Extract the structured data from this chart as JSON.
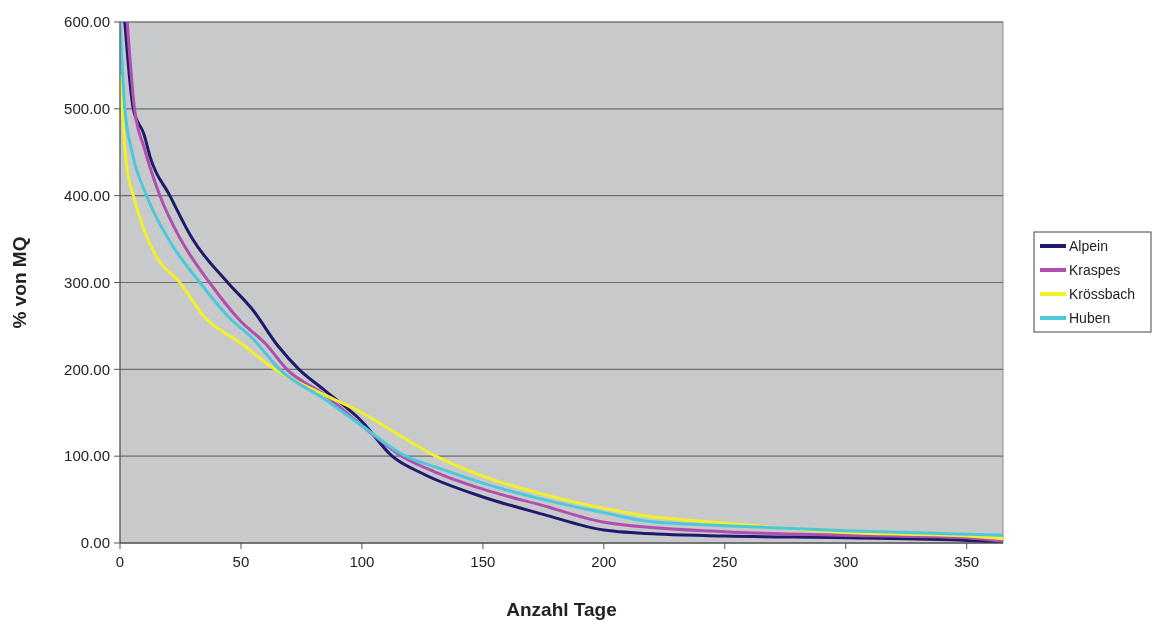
{
  "chart_data": {
    "type": "line",
    "xlabel": "Anzahl Tage",
    "ylabel": "% von MQ",
    "xlim": [
      0,
      365
    ],
    "xticks": [
      0,
      50,
      100,
      150,
      200,
      250,
      300,
      350
    ],
    "ylim": [
      0,
      600
    ],
    "yticks": [
      {
        "value": 0,
        "label": "0.00"
      },
      {
        "value": 100,
        "label": "100.00"
      },
      {
        "value": 200,
        "label": "200.00"
      },
      {
        "value": 300,
        "label": "300.00"
      },
      {
        "value": 400,
        "label": "400.00"
      },
      {
        "value": 500,
        "label": "500.00"
      },
      {
        "value": 600,
        "label": "600.00"
      }
    ],
    "grid": "y",
    "legend": "right",
    "marker": "none",
    "line_style": "solid",
    "series": [
      {
        "name": "Alpein",
        "color": "#1f1a6e",
        "x": [
          2,
          5.5,
          10,
          12.4,
          20.6,
          30,
          44.5,
          55,
          65,
          74,
          85,
          100,
          112.5,
          125,
          150,
          175,
          200,
          225,
          250,
          300,
          350,
          365
        ],
        "values": [
          600,
          500,
          470,
          445,
          400,
          350,
          300,
          268,
          228,
          200,
          175,
          140,
          100,
          80,
          53,
          33,
          15,
          10,
          8,
          6,
          3,
          1
        ]
      },
      {
        "name": "Kraspes",
        "color": "#b04fb0",
        "x": [
          3,
          6,
          10,
          16.5,
          25,
          37,
          50,
          60,
          69,
          85,
          100,
          116.5,
          130,
          150,
          175,
          200,
          250,
          300,
          350,
          365
        ],
        "values": [
          600,
          500,
          455,
          400,
          350,
          300,
          255,
          230,
          200,
          170,
          135,
          100,
          82,
          62,
          43,
          24,
          13,
          9,
          6,
          2
        ]
      },
      {
        "name": "Krössbach",
        "color": "#f2f02a",
        "x": [
          0.5,
          1,
          3,
          5.5,
          10,
          15,
          24.7,
          35,
          50,
          64,
          85,
          100,
          115,
          130.5,
          150,
          175,
          200,
          218,
          250,
          300,
          350,
          365
        ],
        "values": [
          540,
          500,
          430,
          400,
          360,
          330,
          300,
          260,
          230,
          200,
          170,
          150,
          125,
          100,
          77,
          56,
          40,
          31,
          23,
          12,
          8,
          5
        ]
      },
      {
        "name": "Huben",
        "color": "#4cc8dc",
        "x": [
          0,
          2,
          5,
          11,
          20,
          33,
          45,
          55,
          66,
          85,
          100,
          118,
          130,
          150,
          175,
          200,
          218,
          250,
          300,
          350,
          365
        ],
        "values": [
          600,
          500,
          450,
          400,
          350,
          300,
          260,
          235,
          200,
          165,
          135,
          100,
          88,
          69,
          50,
          35,
          25,
          20,
          14,
          10,
          9
        ]
      }
    ]
  }
}
